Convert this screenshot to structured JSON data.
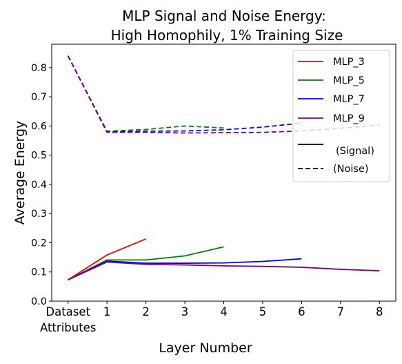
{
  "chart_data": {
    "type": "line",
    "title_lines": [
      "MLP Signal and Noise Energy:",
      "High Homophily, 1% Training Size"
    ],
    "xlabel": "Layer Number",
    "ylabel": "Average Energy",
    "x_ticks": [
      {
        "x": 0,
        "label": "Dataset",
        "label2": "Attributes"
      },
      {
        "x": 1,
        "label": "1"
      },
      {
        "x": 2,
        "label": "2"
      },
      {
        "x": 3,
        "label": "3"
      },
      {
        "x": 4,
        "label": "4"
      },
      {
        "x": 5,
        "label": "5"
      },
      {
        "x": 6,
        "label": "6"
      },
      {
        "x": 7,
        "label": "7"
      },
      {
        "x": 8,
        "label": "8"
      }
    ],
    "y_ticks": [
      "0.0",
      "0.1",
      "0.2",
      "0.3",
      "0.4",
      "0.5",
      "0.6",
      "0.7",
      "0.8"
    ],
    "xlim": [
      -0.42,
      8.42
    ],
    "ylim": [
      0,
      0.88
    ],
    "grid": false,
    "legend_position": "top-right",
    "series": [
      {
        "name": "MLP_3",
        "color": "#ff0000",
        "signal": [
          [
            0,
            0.073
          ],
          [
            1,
            0.158
          ],
          [
            2,
            0.213
          ]
        ],
        "noise": [
          [
            0,
            0.84
          ],
          [
            1,
            0.579
          ],
          [
            2,
            0.581
          ]
        ]
      },
      {
        "name": "MLP_5",
        "color": "#008000",
        "signal": [
          [
            0,
            0.073
          ],
          [
            1,
            0.141
          ],
          [
            2,
            0.141
          ],
          [
            3,
            0.155
          ],
          [
            4,
            0.186
          ]
        ],
        "noise": [
          [
            0,
            0.84
          ],
          [
            1,
            0.582
          ],
          [
            2,
            0.588
          ],
          [
            3,
            0.6
          ],
          [
            4,
            0.593
          ]
        ]
      },
      {
        "name": "MLP_7",
        "color": "#0000ff",
        "signal": [
          [
            0,
            0.073
          ],
          [
            1,
            0.137
          ],
          [
            2,
            0.13
          ],
          [
            3,
            0.13
          ],
          [
            4,
            0.131
          ],
          [
            5,
            0.136
          ],
          [
            6,
            0.145
          ]
        ],
        "noise": [
          [
            0,
            0.84
          ],
          [
            1,
            0.58
          ],
          [
            2,
            0.582
          ],
          [
            3,
            0.583
          ],
          [
            4,
            0.587
          ],
          [
            5,
            0.596
          ],
          [
            6,
            0.61
          ]
        ]
      },
      {
        "name": "MLP_9",
        "color": "#800080",
        "signal": [
          [
            0,
            0.073
          ],
          [
            1,
            0.134
          ],
          [
            2,
            0.126
          ],
          [
            3,
            0.124
          ],
          [
            4,
            0.121
          ],
          [
            5,
            0.119
          ],
          [
            6,
            0.116
          ],
          [
            7,
            0.109
          ],
          [
            8,
            0.104
          ]
        ],
        "noise": [
          [
            0,
            0.84
          ],
          [
            1,
            0.578
          ],
          [
            2,
            0.578
          ],
          [
            3,
            0.576
          ],
          [
            4,
            0.577
          ],
          [
            5,
            0.578
          ],
          [
            6,
            0.583
          ],
          [
            7,
            0.592
          ],
          [
            8,
            0.603
          ]
        ]
      }
    ],
    "legend_extra": [
      {
        "label": "(Signal)",
        "style": "solid",
        "color": "#000000"
      },
      {
        "label": "(Noise)",
        "style": "dashed",
        "color": "#000000"
      }
    ]
  }
}
